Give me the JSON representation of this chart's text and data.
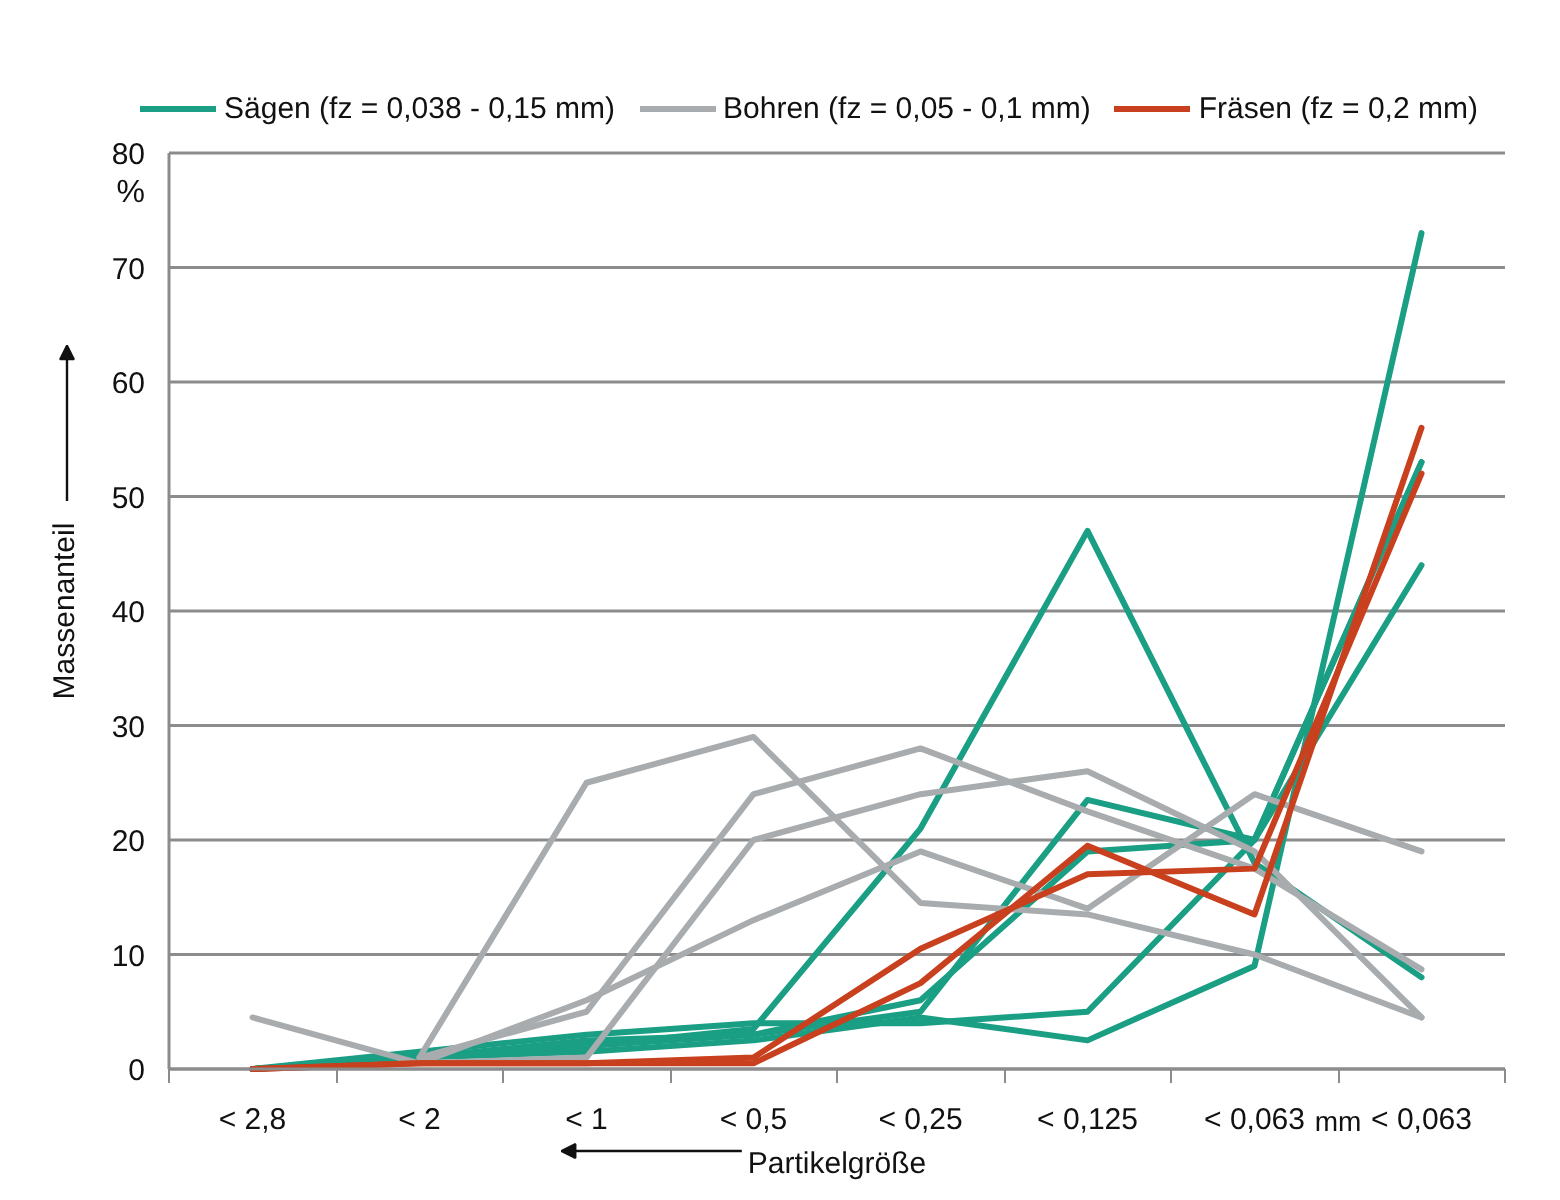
{
  "chart_data": {
    "type": "line",
    "xlabel": "Partikelgröße",
    "ylabel": "Massenanteil",
    "categories": [
      "< 2,8",
      "< 2",
      "< 1",
      "< 0,5",
      "< 0,25",
      "< 0,125",
      "< 0,063",
      "< 0,063"
    ],
    "ylim": [
      0,
      80
    ],
    "yticks": [
      0,
      10,
      20,
      30,
      40,
      50,
      60,
      70,
      80
    ],
    "grid": "y",
    "legend": "top",
    "marker": "none",
    "line_style": "solid",
    "annotations": [
      "%",
      "mm"
    ],
    "series": [
      {
        "name": "Sägen (fz = 0,038 - 0,15 mm)",
        "color": "#1a9e84",
        "values": [
          0,
          1,
          2,
          3.5,
          21,
          47,
          18,
          8
        ]
      },
      {
        "color": "#1a9e84",
        "values": [
          0,
          1,
          2,
          3,
          5,
          23.5,
          20,
          44
        ]
      },
      {
        "color": "#1a9e84",
        "values": [
          0,
          1,
          2.5,
          3,
          6,
          19,
          20,
          53
        ]
      },
      {
        "color": "#1a9e84",
        "values": [
          0,
          1,
          1.5,
          2.5,
          4.5,
          2.5,
          9,
          73
        ]
      },
      {
        "color": "#1a9e84",
        "values": [
          0,
          1.5,
          3,
          4,
          4,
          5,
          20,
          53
        ]
      },
      {
        "name": "Bohren (fz = 0,05 - 0,1 mm)",
        "color": "#a8acae",
        "values": [
          null,
          1,
          25,
          29,
          14.5,
          13.5,
          10,
          4.5
        ]
      },
      {
        "color": "#a8acae",
        "values": [
          null,
          1,
          5,
          24,
          28,
          22.5,
          17.5,
          8.7
        ]
      },
      {
        "color": "#a8acae",
        "values": [
          null,
          0.5,
          1,
          20,
          24,
          26,
          19,
          4.5
        ]
      },
      {
        "color": "#a8acae",
        "values": [
          4.5,
          0.5,
          6,
          13,
          19,
          14,
          24,
          19
        ]
      },
      {
        "name": "Fräsen (fz = 0,2 mm)",
        "color": "#c8401e",
        "values": [
          0,
          0.5,
          0.5,
          0.5,
          7.5,
          19.5,
          13.5,
          56
        ]
      },
      {
        "color": "#c8401e",
        "values": [
          0,
          0.5,
          0.5,
          1,
          10.5,
          17,
          17.5,
          52
        ]
      }
    ]
  }
}
